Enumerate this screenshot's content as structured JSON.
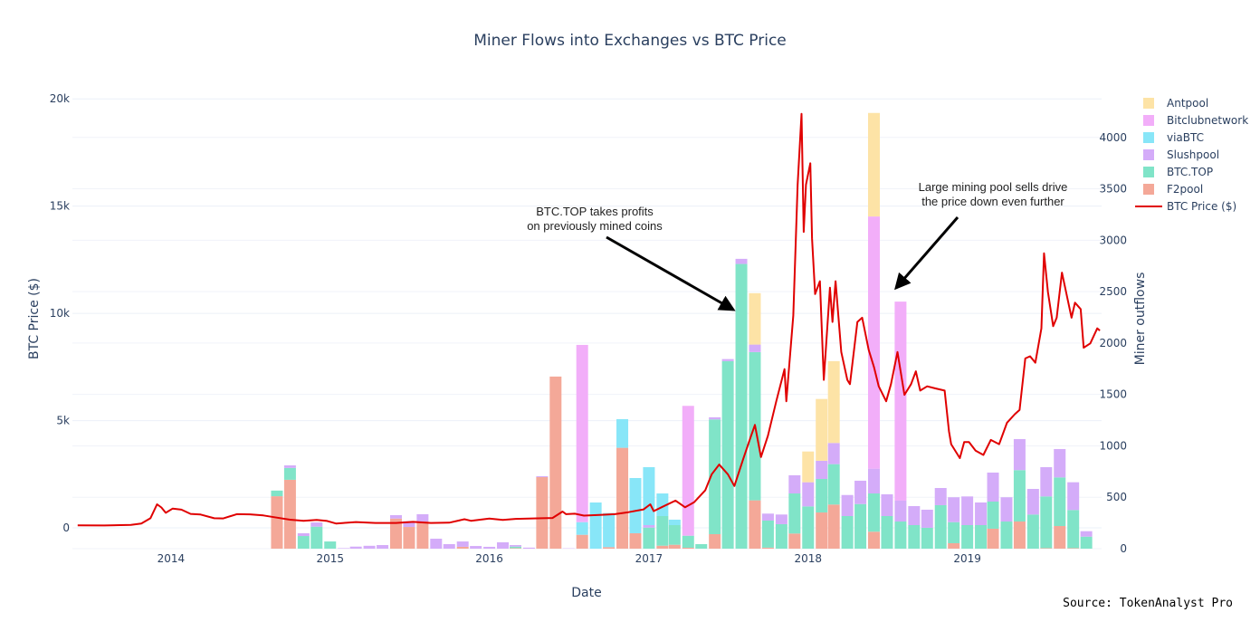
{
  "chart_data": {
    "type": "bar",
    "title": "Miner Flows into Exchanges vs BTC Price",
    "xlabel": "Date",
    "ylabel_left": "BTC Price ($)",
    "ylabel_right": "Miner outflows",
    "barmode": "stack",
    "grid": true,
    "legend_placement": "right",
    "x_ticks": [
      "2014",
      "2015",
      "2016",
      "2017",
      "2018",
      "2019"
    ],
    "y_left_ticks": [
      "0",
      "5k",
      "10k",
      "15k",
      "20k"
    ],
    "y_left_tick_values": [
      0,
      5000,
      10000,
      15000,
      20000
    ],
    "y_left_range": [
      -970,
      20600
    ],
    "y_right_ticks": [
      "0",
      "500",
      "1000",
      "1500",
      "2000",
      "2500",
      "3000",
      "3500",
      "4000"
    ],
    "y_right_tick_values": [
      0,
      500,
      1000,
      1500,
      2000,
      2500,
      3000,
      3500,
      4000
    ],
    "y_right_range": [
      0,
      4500
    ],
    "x_range": [
      "2013-05-20",
      "2019-11-05"
    ],
    "months": [
      "2014-09",
      "2014-10",
      "2014-11",
      "2014-12",
      "2015-01",
      "2015-02",
      "2015-03",
      "2015-04",
      "2015-05",
      "2015-06",
      "2015-07",
      "2015-08",
      "2015-09",
      "2015-10",
      "2015-11",
      "2015-12",
      "2016-01",
      "2016-02",
      "2016-03",
      "2016-04",
      "2016-05",
      "2016-06",
      "2016-07",
      "2016-08",
      "2016-09",
      "2016-10",
      "2016-11",
      "2016-12",
      "2017-01",
      "2017-02",
      "2017-03",
      "2017-04",
      "2017-05",
      "2017-06",
      "2017-07",
      "2017-08",
      "2017-09",
      "2017-10",
      "2017-11",
      "2017-12",
      "2018-01",
      "2018-02",
      "2018-03",
      "2018-04",
      "2018-05",
      "2018-06",
      "2018-07",
      "2018-08",
      "2018-09",
      "2018-10",
      "2018-11",
      "2018-12",
      "2019-01",
      "2019-02",
      "2019-03",
      "2019-04",
      "2019-05",
      "2019-06",
      "2019-07",
      "2019-08",
      "2019-09",
      "2019-10"
    ],
    "series": [
      {
        "name": "F2pool",
        "color": "#f4a898",
        "values": [
          510,
          670,
          0,
          0,
          0,
          0,
          0,
          0,
          0,
          293,
          211,
          264,
          0,
          0,
          18,
          0,
          0,
          0,
          5,
          0,
          696,
          1674,
          0,
          135,
          0,
          15,
          981,
          150,
          0,
          29,
          38,
          9,
          0,
          141,
          0,
          0,
          470,
          10,
          0,
          147,
          0,
          352,
          429,
          0,
          0,
          165,
          0,
          0,
          0,
          0,
          0,
          53,
          0,
          0,
          194,
          0,
          264,
          0,
          5,
          220,
          5,
          0
        ]
      },
      {
        "name": "BTC.TOP",
        "color": "#80e4c8",
        "values": [
          55,
          115,
          123,
          214,
          70,
          0,
          0,
          0,
          0,
          0,
          0,
          0,
          0,
          0,
          0,
          0,
          0,
          0,
          15,
          0,
          0,
          0,
          0,
          0,
          0,
          0,
          0,
          0,
          205,
          288,
          191,
          117,
          44,
          1116,
          1824,
          2769,
          1442,
          263,
          238,
          390,
          411,
          326,
          393,
          317,
          434,
          372,
          317,
          264,
          229,
          203,
          423,
          205,
          229,
          229,
          264,
          264,
          500,
          332,
          503,
          473,
          371,
          117
        ]
      },
      {
        "name": "Slushpool",
        "color": "#d4acf9",
        "values": [
          0,
          25,
          27,
          41,
          0,
          5,
          20,
          28,
          35,
          33,
          56,
          71,
          97,
          44,
          52,
          26,
          18,
          62,
          15,
          10,
          9,
          0,
          3,
          0,
          0,
          0,
          0,
          0,
          24,
          0,
          0,
          0,
          0,
          21,
          20,
          50,
          73,
          68,
          94,
          177,
          235,
          177,
          206,
          205,
          227,
          241,
          212,
          203,
          185,
          176,
          167,
          242,
          279,
          220,
          282,
          236,
          302,
          249,
          285,
          276,
          270,
          53
        ]
      },
      {
        "name": "viaBTC",
        "color": "#88e6f8",
        "values": [
          0,
          0,
          0,
          0,
          0,
          0,
          0,
          0,
          0,
          0,
          0,
          0,
          0,
          0,
          0,
          0,
          0,
          0,
          0,
          0,
          0,
          0,
          0,
          123,
          449,
          331,
          279,
          537,
          564,
          220,
          53,
          0,
          0,
          0,
          0,
          0,
          0,
          0,
          0,
          0,
          0,
          0,
          0,
          0,
          0,
          0,
          0,
          0,
          0,
          0,
          0,
          0,
          0,
          0,
          0,
          0,
          0,
          0,
          0,
          0,
          0,
          0
        ]
      },
      {
        "name": "Bitclubnetwork",
        "color": "#f2aef9",
        "values": [
          0,
          0,
          0,
          0,
          0,
          0,
          0,
          0,
          0,
          0,
          0,
          0,
          0,
          0,
          0,
          0,
          0,
          0,
          0,
          0,
          0,
          0,
          0,
          1724,
          0,
          0,
          0,
          0,
          0,
          0,
          0,
          1263,
          0,
          0,
          0,
          0,
          0,
          0,
          0,
          0,
          0,
          0,
          0,
          0,
          0,
          2453,
          0,
          1936,
          0,
          0,
          0,
          0,
          0,
          0,
          0,
          0,
          0,
          0,
          0,
          0,
          0,
          0
        ]
      },
      {
        "name": "Antpool",
        "color": "#fde3a6",
        "values": [
          0,
          0,
          0,
          0,
          0,
          0,
          0,
          0,
          0,
          0,
          0,
          0,
          0,
          0,
          0,
          0,
          0,
          0,
          0,
          0,
          0,
          0,
          0,
          0,
          0,
          0,
          0,
          0,
          0,
          0,
          0,
          0,
          0,
          0,
          0,
          0,
          500,
          0,
          0,
          0,
          299,
          601,
          796,
          0,
          0,
          1007,
          0,
          0,
          0,
          0,
          0,
          0,
          0,
          0,
          0,
          0,
          0,
          0,
          0,
          0,
          0,
          0
        ]
      }
    ],
    "price_series": {
      "name": "BTC Price ($)",
      "color": "#e00000",
      "axis": "left",
      "points": [
        [
          "2013-06-01",
          120
        ],
        [
          "2013-08-01",
          110
        ],
        [
          "2013-10-01",
          140
        ],
        [
          "2013-10-25",
          200
        ],
        [
          "2013-11-15",
          450
        ],
        [
          "2013-11-30",
          1100
        ],
        [
          "2013-12-10",
          950
        ],
        [
          "2013-12-20",
          700
        ],
        [
          "2014-01-05",
          900
        ],
        [
          "2014-01-25",
          850
        ],
        [
          "2014-02-15",
          650
        ],
        [
          "2014-03-10",
          620
        ],
        [
          "2014-04-10",
          450
        ],
        [
          "2014-05-01",
          440
        ],
        [
          "2014-06-01",
          640
        ],
        [
          "2014-07-01",
          630
        ],
        [
          "2014-08-01",
          580
        ],
        [
          "2014-08-25",
          500
        ],
        [
          "2014-10-01",
          380
        ],
        [
          "2014-11-01",
          330
        ],
        [
          "2014-12-01",
          370
        ],
        [
          "2014-12-25",
          320
        ],
        [
          "2015-01-15",
          200
        ],
        [
          "2015-02-01",
          230
        ],
        [
          "2015-03-01",
          270
        ],
        [
          "2015-04-15",
          230
        ],
        [
          "2015-06-01",
          230
        ],
        [
          "2015-07-10",
          280
        ],
        [
          "2015-08-20",
          230
        ],
        [
          "2015-10-01",
          240
        ],
        [
          "2015-11-05",
          400
        ],
        [
          "2015-11-20",
          330
        ],
        [
          "2016-01-01",
          430
        ],
        [
          "2016-02-01",
          370
        ],
        [
          "2016-03-01",
          420
        ],
        [
          "2016-05-01",
          450
        ],
        [
          "2016-05-25",
          460
        ],
        [
          "2016-06-17",
          760
        ],
        [
          "2016-06-25",
          640
        ],
        [
          "2016-07-15",
          660
        ],
        [
          "2016-08-05",
          570
        ],
        [
          "2016-09-15",
          610
        ],
        [
          "2016-10-15",
          640
        ],
        [
          "2016-11-15",
          730
        ],
        [
          "2016-12-20",
          860
        ],
        [
          "2017-01-04",
          1100
        ],
        [
          "2017-01-12",
          780
        ],
        [
          "2017-02-01",
          980
        ],
        [
          "2017-03-03",
          1270
        ],
        [
          "2017-03-25",
          960
        ],
        [
          "2017-04-15",
          1200
        ],
        [
          "2017-05-10",
          1750
        ],
        [
          "2017-05-25",
          2500
        ],
        [
          "2017-06-11",
          2950
        ],
        [
          "2017-07-01",
          2500
        ],
        [
          "2017-07-16",
          1950
        ],
        [
          "2017-08-05",
          3200
        ],
        [
          "2017-08-20",
          4100
        ],
        [
          "2017-09-01",
          4800
        ],
        [
          "2017-09-15",
          3300
        ],
        [
          "2017-10-01",
          4300
        ],
        [
          "2017-10-20",
          5900
        ],
        [
          "2017-11-08",
          7400
        ],
        [
          "2017-11-12",
          5900
        ],
        [
          "2017-11-28",
          9900
        ],
        [
          "2017-12-08",
          16000
        ],
        [
          "2017-12-17",
          19300
        ],
        [
          "2017-12-22",
          13800
        ],
        [
          "2017-12-27",
          16000
        ],
        [
          "2018-01-06",
          17000
        ],
        [
          "2018-01-10",
          13500
        ],
        [
          "2018-01-17",
          10900
        ],
        [
          "2018-01-28",
          11500
        ],
        [
          "2018-02-06",
          6900
        ],
        [
          "2018-02-20",
          11200
        ],
        [
          "2018-02-26",
          9600
        ],
        [
          "2018-03-05",
          11500
        ],
        [
          "2018-03-18",
          8200
        ],
        [
          "2018-04-01",
          6900
        ],
        [
          "2018-04-07",
          6700
        ],
        [
          "2018-04-24",
          9600
        ],
        [
          "2018-05-05",
          9800
        ],
        [
          "2018-05-20",
          8300
        ],
        [
          "2018-06-01",
          7500
        ],
        [
          "2018-06-12",
          6600
        ],
        [
          "2018-06-29",
          5900
        ],
        [
          "2018-07-10",
          6700
        ],
        [
          "2018-07-25",
          8200
        ],
        [
          "2018-08-10",
          6200
        ],
        [
          "2018-08-25",
          6700
        ],
        [
          "2018-09-05",
          7300
        ],
        [
          "2018-09-15",
          6400
        ],
        [
          "2018-10-01",
          6600
        ],
        [
          "2018-10-20",
          6500
        ],
        [
          "2018-11-10",
          6400
        ],
        [
          "2018-11-20",
          4500
        ],
        [
          "2018-11-25",
          3900
        ],
        [
          "2018-12-15",
          3250
        ],
        [
          "2018-12-25",
          4000
        ],
        [
          "2019-01-05",
          4000
        ],
        [
          "2019-01-20",
          3600
        ],
        [
          "2019-02-07",
          3400
        ],
        [
          "2019-02-24",
          4100
        ],
        [
          "2019-03-15",
          3900
        ],
        [
          "2019-04-02",
          4900
        ],
        [
          "2019-04-20",
          5300
        ],
        [
          "2019-05-01",
          5500
        ],
        [
          "2019-05-14",
          7900
        ],
        [
          "2019-05-25",
          8000
        ],
        [
          "2019-06-06",
          7700
        ],
        [
          "2019-06-20",
          9300
        ],
        [
          "2019-06-26",
          12800
        ],
        [
          "2019-07-05",
          11000
        ],
        [
          "2019-07-17",
          9400
        ],
        [
          "2019-07-25",
          9800
        ],
        [
          "2019-08-06",
          11900
        ],
        [
          "2019-08-28",
          9800
        ],
        [
          "2019-09-05",
          10500
        ],
        [
          "2019-09-18",
          10200
        ],
        [
          "2019-09-25",
          8400
        ],
        [
          "2019-10-10",
          8600
        ],
        [
          "2019-10-26",
          9300
        ],
        [
          "2019-11-01",
          9200
        ]
      ]
    },
    "annotations": [
      {
        "lines": [
          "BTC.TOP takes profits",
          "on previously mined coins"
        ]
      },
      {
        "lines": [
          "Large mining pool sells drive",
          "the price down even further"
        ]
      }
    ],
    "legend": [
      "Antpool",
      "Bitclubnetwork",
      "viaBTC",
      "Slushpool",
      "BTC.TOP",
      "F2pool",
      "BTC Price ($)"
    ]
  },
  "source": "Source: TokenAnalyst Pro"
}
